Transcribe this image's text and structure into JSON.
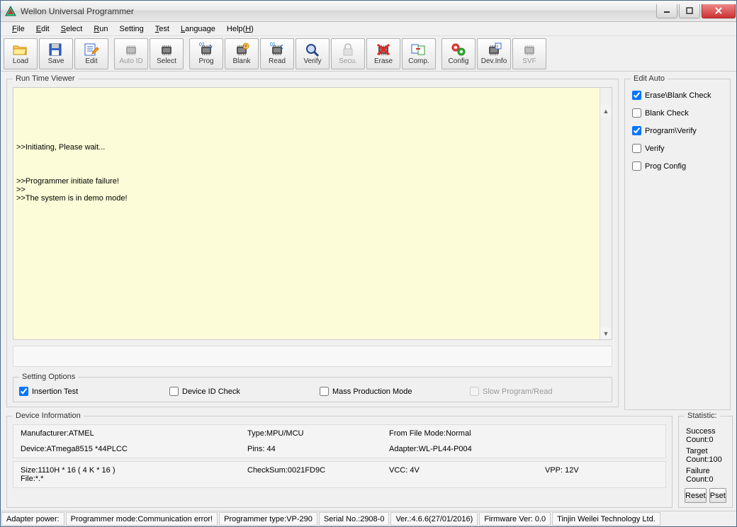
{
  "window": {
    "title": "Wellon Universal Programmer"
  },
  "menu": {
    "items": [
      "File",
      "Edit",
      "Select",
      "Run",
      "Setting",
      "Test",
      "Language",
      "Help(H)"
    ]
  },
  "toolbar": {
    "buttons": [
      {
        "label": "Load",
        "icon": "folder",
        "enabled": true
      },
      {
        "label": "Save",
        "icon": "disk",
        "enabled": true
      },
      {
        "label": "Edit",
        "icon": "edit",
        "enabled": true
      },
      {
        "label": "Auto ID",
        "icon": "chip",
        "enabled": false
      },
      {
        "label": "Select",
        "icon": "chip",
        "enabled": true
      },
      {
        "label": "Prog",
        "icon": "chip01",
        "enabled": true
      },
      {
        "label": "Blank",
        "icon": "chipq",
        "enabled": true
      },
      {
        "label": "Read",
        "icon": "chip01r",
        "enabled": true
      },
      {
        "label": "Verify",
        "icon": "lens",
        "enabled": true
      },
      {
        "label": "Secu.",
        "icon": "lock",
        "enabled": false
      },
      {
        "label": "Erase",
        "icon": "erase",
        "enabled": true
      },
      {
        "label": "Comp.",
        "icon": "comp",
        "enabled": true
      },
      {
        "label": "Config",
        "icon": "gears",
        "enabled": true
      },
      {
        "label": "Dev.Info",
        "icon": "devinfo",
        "enabled": true
      },
      {
        "label": "SVF",
        "icon": "svf",
        "enabled": false
      }
    ]
  },
  "runtime": {
    "legend": "Run Time Viewer",
    "lines": ">>Initiating, Please wait...\n\n\n\n>>Programmer initiate failure!\n>>\n>>The system is in demo mode!"
  },
  "settingOptions": {
    "legend": "Setting Options",
    "items": [
      {
        "label": "Insertion Test",
        "checked": true,
        "enabled": true
      },
      {
        "label": "Device ID Check",
        "checked": false,
        "enabled": true
      },
      {
        "label": "Mass Production Mode",
        "checked": false,
        "enabled": true
      },
      {
        "label": "Slow Program/Read",
        "checked": false,
        "enabled": false
      }
    ]
  },
  "editAuto": {
    "legend": "Edit Auto",
    "items": [
      {
        "label": "Erase\\Blank Check",
        "checked": true
      },
      {
        "label": "Blank Check",
        "checked": false
      },
      {
        "label": "Program\\Verify",
        "checked": true
      },
      {
        "label": "Verify",
        "checked": false
      },
      {
        "label": "Prog Config",
        "checked": false
      }
    ]
  },
  "deviceInfo": {
    "legend": "Device Information",
    "row1": {
      "manufacturer": "Manufacturer:ATMEL",
      "type": "Type:MPU/MCU",
      "fromFile": "From File Mode:Normal",
      "device": "Device:ATmega8515 *44PLCC",
      "pins": "Pins: 44",
      "adapter": "Adapter:WL-PL44-P004"
    },
    "row2": {
      "size": "Size:1110H * 16 ( 4 K * 16 )",
      "file": "File:*.*",
      "checksum": "CheckSum:0021FD9C",
      "vcc": "VCC: 4V",
      "vpp": "VPP: 12V"
    }
  },
  "statistic": {
    "legend": "Statistic:",
    "success": "Success Count:0",
    "target": "Target Count:100",
    "failure": "Failure Count:0",
    "reset": "Reset",
    "pset": "Pset"
  },
  "status": {
    "cells": [
      "Adapter power:",
      "Programmer mode:Communication error!",
      "Programmer type:VP-290",
      "Serial No.:2908-0",
      "Ver.:4.6.6(27/01/2016)",
      "Firmware Ver: 0.0",
      "Tinjin Weilei Technology Ltd."
    ]
  }
}
